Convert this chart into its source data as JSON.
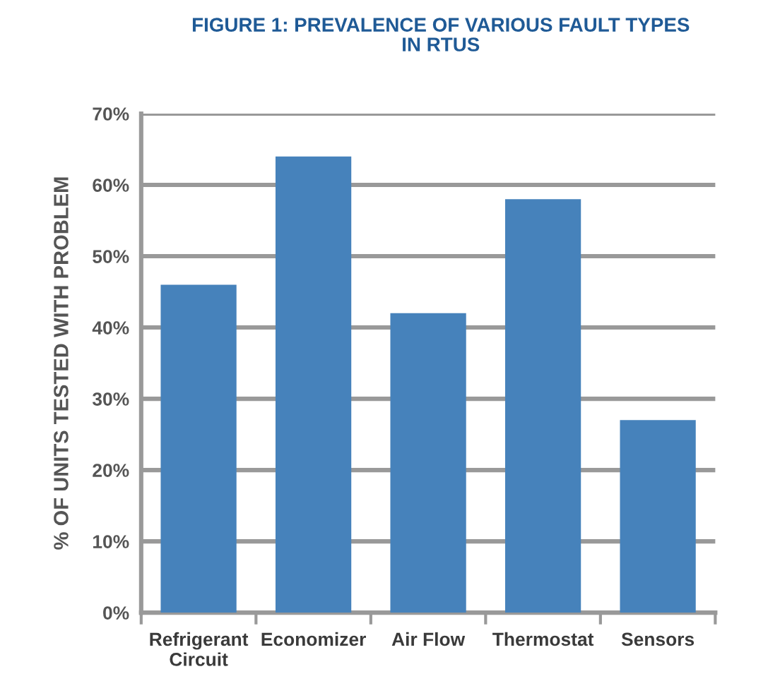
{
  "chart_data": {
    "type": "bar",
    "title": "FIGURE 1: PREVALENCE OF VARIOUS FAULT TYPES\nIN RTUS",
    "ylabel": "% OF UNITS TESTED WITH PROBLEM",
    "categories": [
      "Refrigerant\nCircuit",
      "Economizer",
      "Air Flow",
      "Thermostat",
      "Sensors"
    ],
    "values": [
      46,
      64,
      42,
      58,
      27
    ],
    "color": "#4682bb",
    "ylim": [
      0,
      70
    ],
    "yticks": [
      {
        "value": 0,
        "label": "0%"
      },
      {
        "value": 10,
        "label": "10%"
      },
      {
        "value": 20,
        "label": "20%"
      },
      {
        "value": 30,
        "label": "30%"
      },
      {
        "value": 40,
        "label": "40%"
      },
      {
        "value": 50,
        "label": "50%"
      },
      {
        "value": 60,
        "label": "60%"
      },
      {
        "value": 70,
        "label": "70%"
      }
    ],
    "grid": "y",
    "legend": false
  }
}
